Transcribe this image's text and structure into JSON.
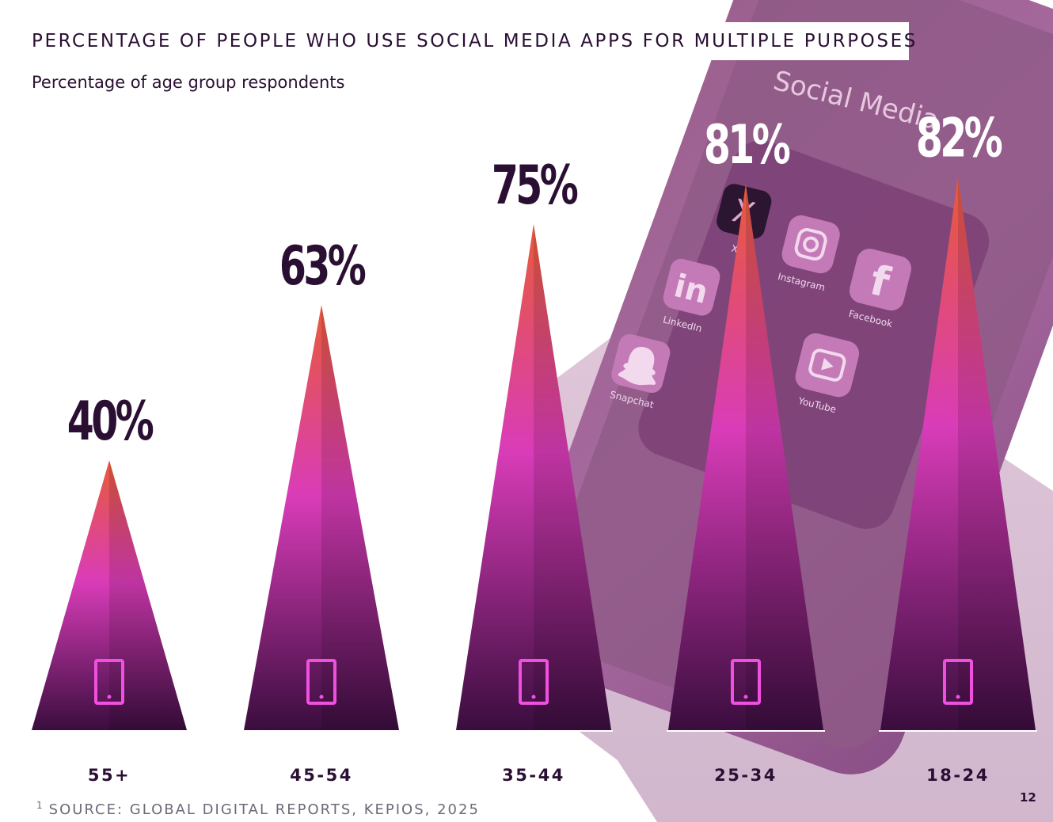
{
  "page": {
    "title": "PERCENTAGE OF PEOPLE WHO USE SOCIAL MEDIA APPS FOR MULTIPLE PURPOSES",
    "subtitle": "Percentage of age group respondents",
    "source_mark": "1",
    "source": "SOURCE: GLOBAL DIGITAL REPORTS, KEPIOS, 2025",
    "page_number": "12"
  },
  "background": {
    "phone_text": "Social Media",
    "apps": [
      "X",
      "Instagram",
      "Facebook",
      "LinkedIn",
      "YouTube",
      "Snapchat"
    ],
    "app_icons": [
      "x-logo-icon",
      "instagram-icon",
      "facebook-icon",
      "linkedin-icon",
      "youtube-icon",
      "snapchat-icon"
    ]
  },
  "chart_data": {
    "type": "bar",
    "mark_shape": "triangle",
    "categories": [
      "55+",
      "45-54",
      "35-44",
      "25-34",
      "18-24"
    ],
    "values": [
      40,
      63,
      75,
      81,
      82
    ],
    "value_labels": [
      "40%",
      "63%",
      "75%",
      "81%",
      "82%"
    ],
    "ylim": [
      0,
      100
    ],
    "grid": false,
    "legend": false,
    "bar_icon": "smartphone-icon",
    "colors": {
      "top": "#e85a3a",
      "mid": "#d93cb8",
      "bottom": "#3a0d3e",
      "label_dark": "#2a0f33",
      "label_light": "#ffffff",
      "icon": "#f050e0"
    }
  }
}
